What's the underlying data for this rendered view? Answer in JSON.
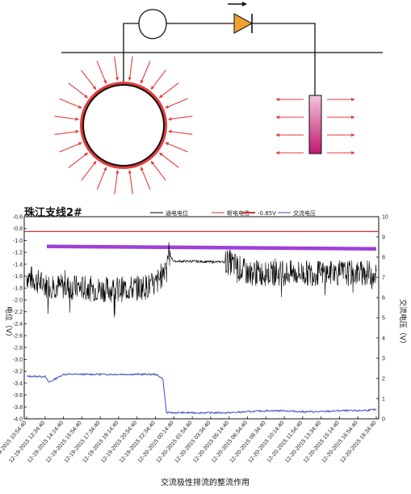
{
  "colors": {
    "arrow": "#e53a3a",
    "pipe": "#111111",
    "anode_top": "#f3c6dc",
    "anode_bottom": "#c0166d",
    "diode": "#f0a030",
    "on_potential": "#000000",
    "off_potential": "#c0392b",
    "ref_line": "#d63030",
    "ac_voltage": "#3a4cc0",
    "purple_band": "#a040d8"
  },
  "diagram": {
    "icons": [
      "pipe-cross-section-icon",
      "anode-rod-icon",
      "diode-icon",
      "coil-icon",
      "current-direction-icon"
    ]
  },
  "chart": {
    "title": "珠江支线2#",
    "left_axis_label_fragment": "电位（V）",
    "right_axis_label": "交流电压（V）",
    "legend": [
      "通电电位",
      "断电电位",
      "-0.85V",
      "交流电压"
    ]
  },
  "chart_data": {
    "type": "line",
    "title": "珠江支线2#",
    "xlabel": "",
    "ylabel": "",
    "y2label": "交流电压（V）",
    "ylim": [
      -4.0,
      -0.6
    ],
    "y2lim": [
      0,
      10
    ],
    "yticks": [
      -0.6,
      -0.8,
      -1.0,
      -1.2,
      -1.4,
      -1.6,
      -1.8,
      -2.0,
      -2.2,
      -2.4,
      -2.6,
      -2.8,
      -3.0,
      -3.2,
      -3.4,
      -3.6,
      -3.8,
      -4.0
    ],
    "y2ticks": [
      0,
      1,
      2,
      3,
      4,
      5,
      6,
      7,
      8,
      9,
      10
    ],
    "xticks": [
      "12-19-2015 10:54:40",
      "12-19-2015 12:34:40",
      "12-19-2015 14:14:40",
      "12-19-2015 15:54:40",
      "12-19-2015 17:34:40",
      "12-19-2015 19:14:40",
      "12-19-2015 20:54:40",
      "12-19-2015 22:34:40",
      "12-20-2015 00:14:40",
      "12-20-2015 01:54:40",
      "12-20-2015 03:34:40",
      "12-20-2015 05:14:40",
      "12-20-2015 06:54:40",
      "12-20-2015 08:34:40",
      "12-20-2015 10:14:40",
      "12-20-2015 11:54:40",
      "12-20-2015 13:34:40",
      "12-20-2015 15:14:40",
      "12-20-2015 16:54:40",
      "12-20-2015 18:34:40"
    ],
    "series": [
      {
        "name": "通电电位",
        "axis": "left",
        "x": [
          0,
          1,
          2,
          3,
          4,
          5,
          6,
          7,
          7.4,
          7.7,
          8,
          9,
          10,
          11,
          11.5,
          12,
          13,
          14,
          15,
          16,
          17,
          18,
          19
        ],
        "values": [
          -1.6,
          -1.75,
          -1.78,
          -1.8,
          -1.82,
          -1.82,
          -1.8,
          -1.75,
          -1.55,
          -1.2,
          -1.35,
          -1.35,
          -1.36,
          -1.36,
          -1.45,
          -1.55,
          -1.55,
          -1.55,
          -1.55,
          -1.55,
          -1.55,
          -1.55,
          -1.55
        ]
      },
      {
        "name": "断电电位",
        "axis": "left",
        "x": [
          0,
          19
        ],
        "values": [
          -1.1,
          -1.14
        ]
      },
      {
        "name": "-0.85V",
        "axis": "left",
        "x": [
          0,
          19
        ],
        "values": [
          -0.85,
          -0.85
        ]
      },
      {
        "name": "交流电压",
        "axis": "right",
        "x": [
          0,
          1,
          1.2,
          2,
          3,
          4,
          5,
          6,
          7,
          7.4,
          7.6,
          8,
          9,
          10,
          11,
          12,
          13,
          14,
          15,
          16,
          17,
          18,
          19
        ],
        "values": [
          2.1,
          2.1,
          1.8,
          2.2,
          2.2,
          2.2,
          2.2,
          2.2,
          2.2,
          2.0,
          0.3,
          0.3,
          0.3,
          0.3,
          0.3,
          0.35,
          0.4,
          0.4,
          0.35,
          0.35,
          0.4,
          0.4,
          0.45
        ]
      }
    ],
    "grid": false,
    "legend_position": "top"
  },
  "caption": "交流极性排流的整流作用"
}
